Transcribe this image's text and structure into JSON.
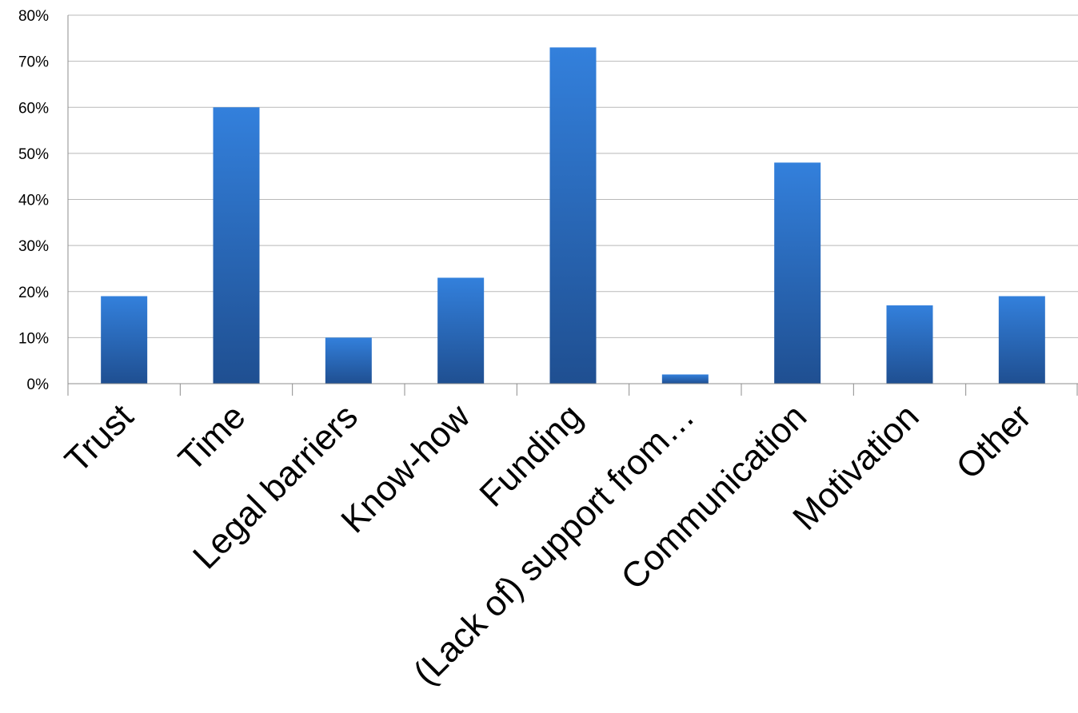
{
  "chart_data": {
    "type": "bar",
    "title": "",
    "xlabel": "",
    "ylabel": "",
    "categories": [
      "Trust",
      "Time",
      "Legal barriers",
      "Know-how",
      "Funding",
      "(Lack of) support from…",
      "Communication",
      "Motivation",
      "Other"
    ],
    "values": [
      19,
      60,
      10,
      23,
      73,
      2,
      48,
      17,
      19
    ],
    "ylim": [
      0,
      80
    ],
    "ytick_step": 10,
    "ytick_suffix": "%",
    "grid": true,
    "legend": "none",
    "colors": {
      "bar_top": "#3380dc",
      "bar_bottom": "#1f4f91",
      "grid": "#b9b9b9",
      "axis": "#8c8c8c"
    }
  }
}
